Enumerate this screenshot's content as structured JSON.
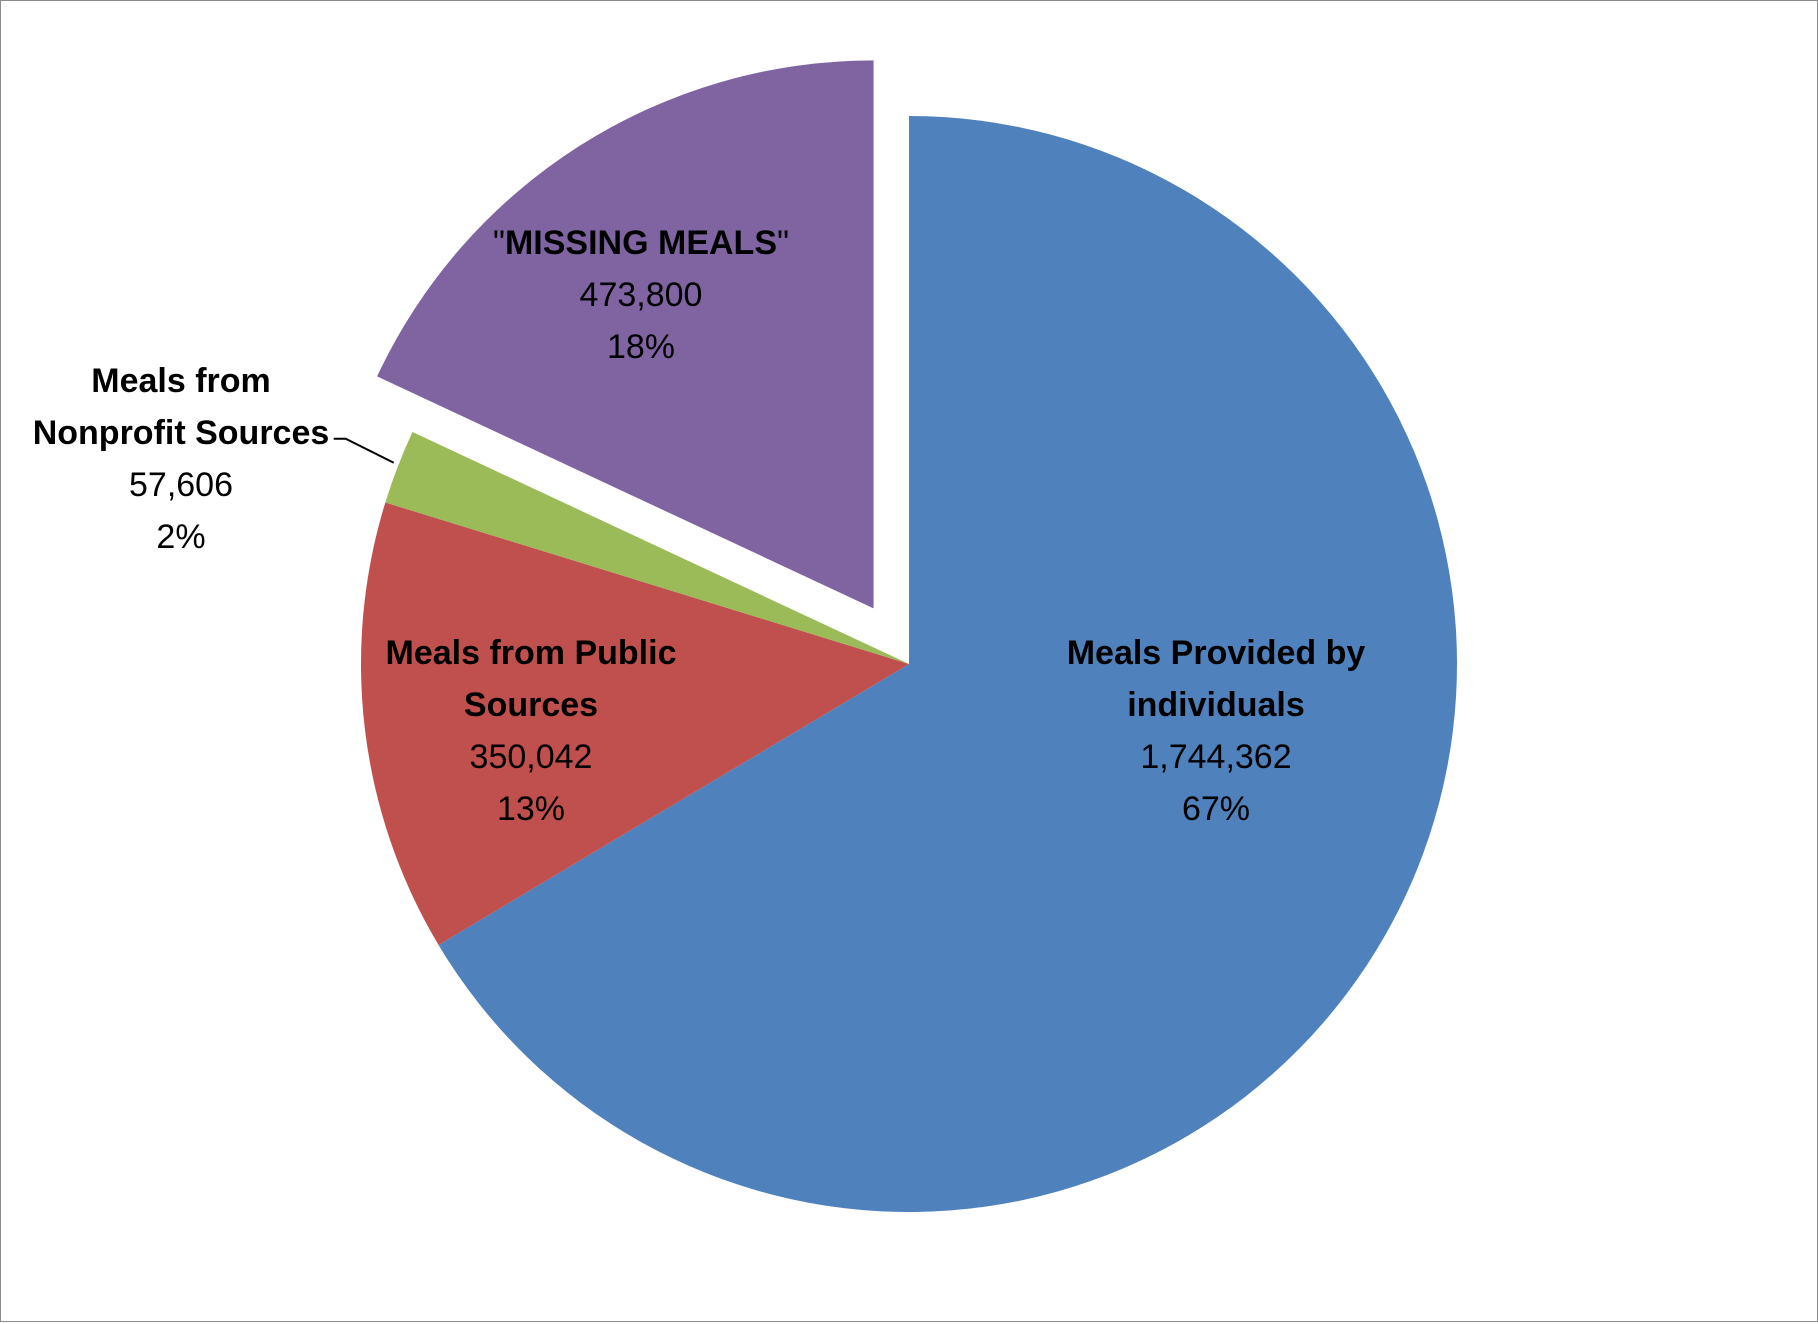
{
  "chart_data": {
    "type": "pie",
    "title": "",
    "slices": [
      {
        "label": "Meals Provided by individuals",
        "label_lines": [
          "Meals Provided by",
          "individuals"
        ],
        "value": 1744362,
        "value_text": "1,744,362",
        "percent": "67%",
        "color": "#4F81BD",
        "exploded": false
      },
      {
        "label": "Meals from Public Sources",
        "label_lines": [
          "Meals from Public",
          "Sources"
        ],
        "value": 350042,
        "value_text": "350,042",
        "percent": "13%",
        "color": "#C0504D",
        "exploded": false
      },
      {
        "label": "Meals from Nonprofit Sources",
        "label_lines": [
          "Meals from",
          "Nonprofit Sources"
        ],
        "value": 57606,
        "value_text": "57,606",
        "percent": "2%",
        "color": "#9BBB59",
        "exploded": false
      },
      {
        "label": "\"MISSING MEALS\"",
        "quote": "\"",
        "label_core": "MISSING MEALS",
        "value": 473800,
        "value_text": "473,800",
        "percent": "18%",
        "color": "#8064A2",
        "exploded": true
      }
    ],
    "start_angle_deg": 0,
    "direction": "clockwise",
    "legend": "none",
    "data_labels": "category name, value, percentage"
  }
}
